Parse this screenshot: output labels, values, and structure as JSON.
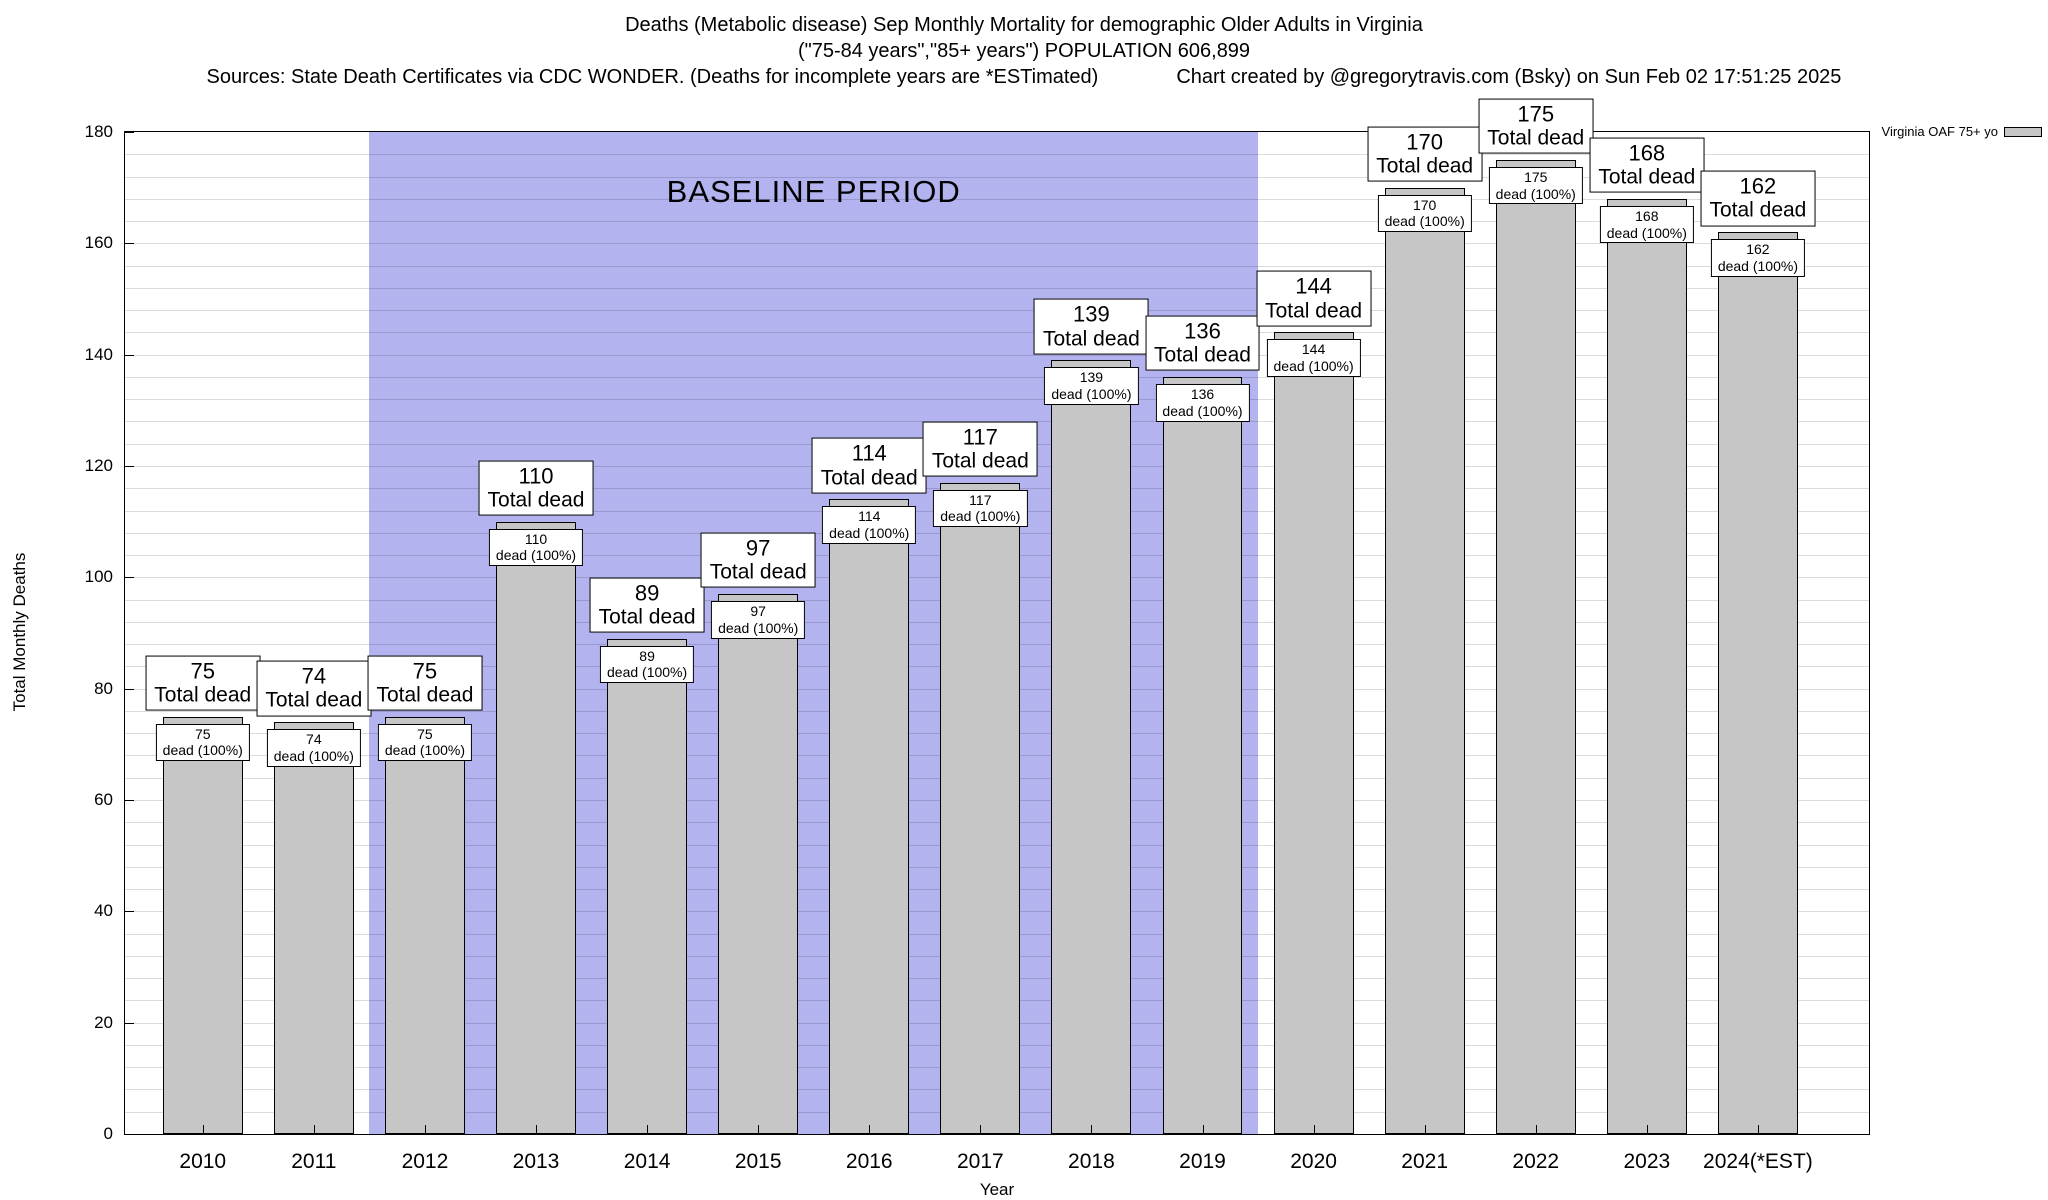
{
  "chart_data": {
    "type": "bar",
    "title": "Deaths (Metabolic disease) Sep Monthly Mortality for demographic Older Adults in Virginia",
    "subtitle": "(\"75-84 years\",\"85+ years\") POPULATION 606,899",
    "sources": "Sources: State Death Certificates via CDC WONDER. (Deaths for incomplete years are *ESTimated)",
    "credit": "Chart created by @gregorytravis.com (Bsky) on Sun Feb 02 17:51:25 2025",
    "categories": [
      "2010",
      "2011",
      "2012",
      "2013",
      "2014",
      "2015",
      "2016",
      "2017",
      "2018",
      "2019",
      "2020",
      "2021",
      "2022",
      "2023",
      "2024(*EST)"
    ],
    "values": [
      75,
      74,
      75,
      110,
      89,
      97,
      114,
      117,
      139,
      136,
      144,
      170,
      175,
      168,
      162
    ],
    "xlabel": "Year",
    "ylabel": "Total Monthly Deaths",
    "ylim": [
      0,
      180
    ],
    "y_major_step": 20,
    "y_minor_step": 4,
    "grid": true,
    "bar_color": "#c6c6c6",
    "bar_border_color": "#000000",
    "bar_label_suffix": "Total dead",
    "bar_inner_suffix": "dead (100%)",
    "baseline": {
      "label": "BASELINE PERIOD",
      "start_category": "2012",
      "end_category": "2019",
      "color": "#b3b3f0"
    },
    "legend": {
      "label": "Virginia OAF 75+ yo",
      "position": "top-right",
      "swatch_color": "#c6c6c6"
    }
  }
}
